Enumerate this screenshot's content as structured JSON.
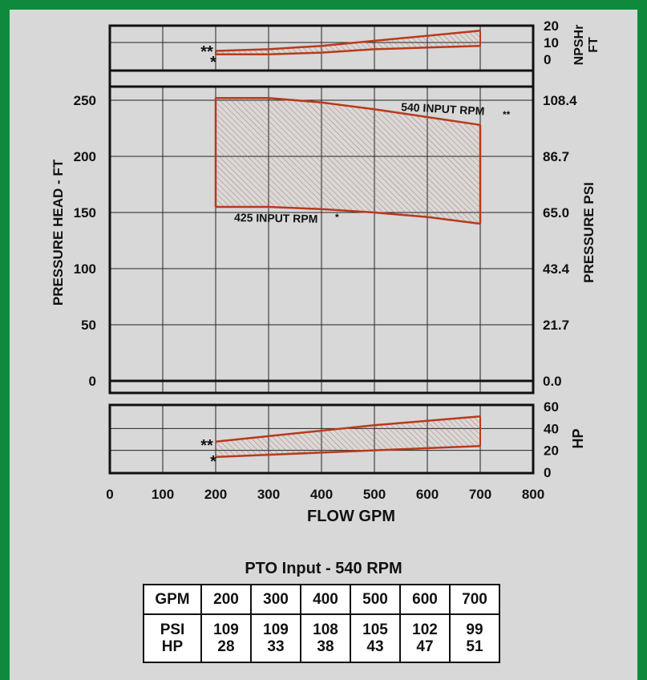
{
  "chart_data": [
    {
      "type": "area",
      "panel": "npsh",
      "ylabel": "NPSHr FT",
      "ylim": [
        0,
        20
      ],
      "yticks": [
        "0",
        "10",
        "20"
      ],
      "series": [
        {
          "name": "**",
          "x": [
            200,
            300,
            400,
            500,
            600,
            700
          ],
          "values": [
            5,
            6,
            8,
            11,
            14,
            17
          ]
        },
        {
          "name": "*",
          "x": [
            200,
            300,
            400,
            500,
            600,
            700
          ],
          "values": [
            3,
            3,
            4,
            6,
            7,
            8
          ]
        }
      ]
    },
    {
      "type": "area",
      "panel": "pressure",
      "ylabel": "PRESSURE HEAD - FT",
      "ylabel_right": "PRESSURE PSI",
      "xlabel": "FLOW GPM",
      "xlim": [
        0,
        800
      ],
      "ylim": [
        0,
        250
      ],
      "xticks": [
        "0",
        "100",
        "200",
        "300",
        "400",
        "500",
        "600",
        "700",
        "800"
      ],
      "yticks": [
        "0",
        "50",
        "100",
        "150",
        "200",
        "250"
      ],
      "yticks_right": [
        "0.0",
        "21.7",
        "43.4",
        "65.0",
        "86.7",
        "108.4"
      ],
      "series": [
        {
          "name": "540 INPUT RPM",
          "marker": "**",
          "x": [
            200,
            300,
            400,
            500,
            600,
            700
          ],
          "values": [
            252,
            252,
            248,
            242,
            235,
            228
          ]
        },
        {
          "name": "425 INPUT RPM",
          "marker": "*",
          "x": [
            200,
            300,
            400,
            500,
            600,
            700
          ],
          "values": [
            155,
            155,
            153,
            150,
            146,
            140
          ]
        }
      ]
    },
    {
      "type": "area",
      "panel": "hp",
      "ylabel": "HP",
      "ylim": [
        0,
        60
      ],
      "yticks": [
        "0",
        "20",
        "40",
        "60"
      ],
      "series": [
        {
          "name": "**",
          "x": [
            200,
            300,
            400,
            500,
            600,
            700
          ],
          "values": [
            28,
            33,
            38,
            43,
            47,
            51
          ]
        },
        {
          "name": "*",
          "x": [
            200,
            300,
            400,
            500,
            600,
            700
          ],
          "values": [
            14,
            16,
            18,
            20,
            22,
            24
          ]
        }
      ]
    },
    {
      "type": "table",
      "title": "PTO Input - 540 RPM",
      "columns": [
        "GPM",
        "200",
        "300",
        "400",
        "500",
        "600",
        "700"
      ],
      "rows": [
        [
          "PSI",
          "109",
          "109",
          "108",
          "105",
          "102",
          "99"
        ],
        [
          "HP",
          "28",
          "33",
          "38",
          "43",
          "47",
          "51"
        ]
      ]
    }
  ]
}
